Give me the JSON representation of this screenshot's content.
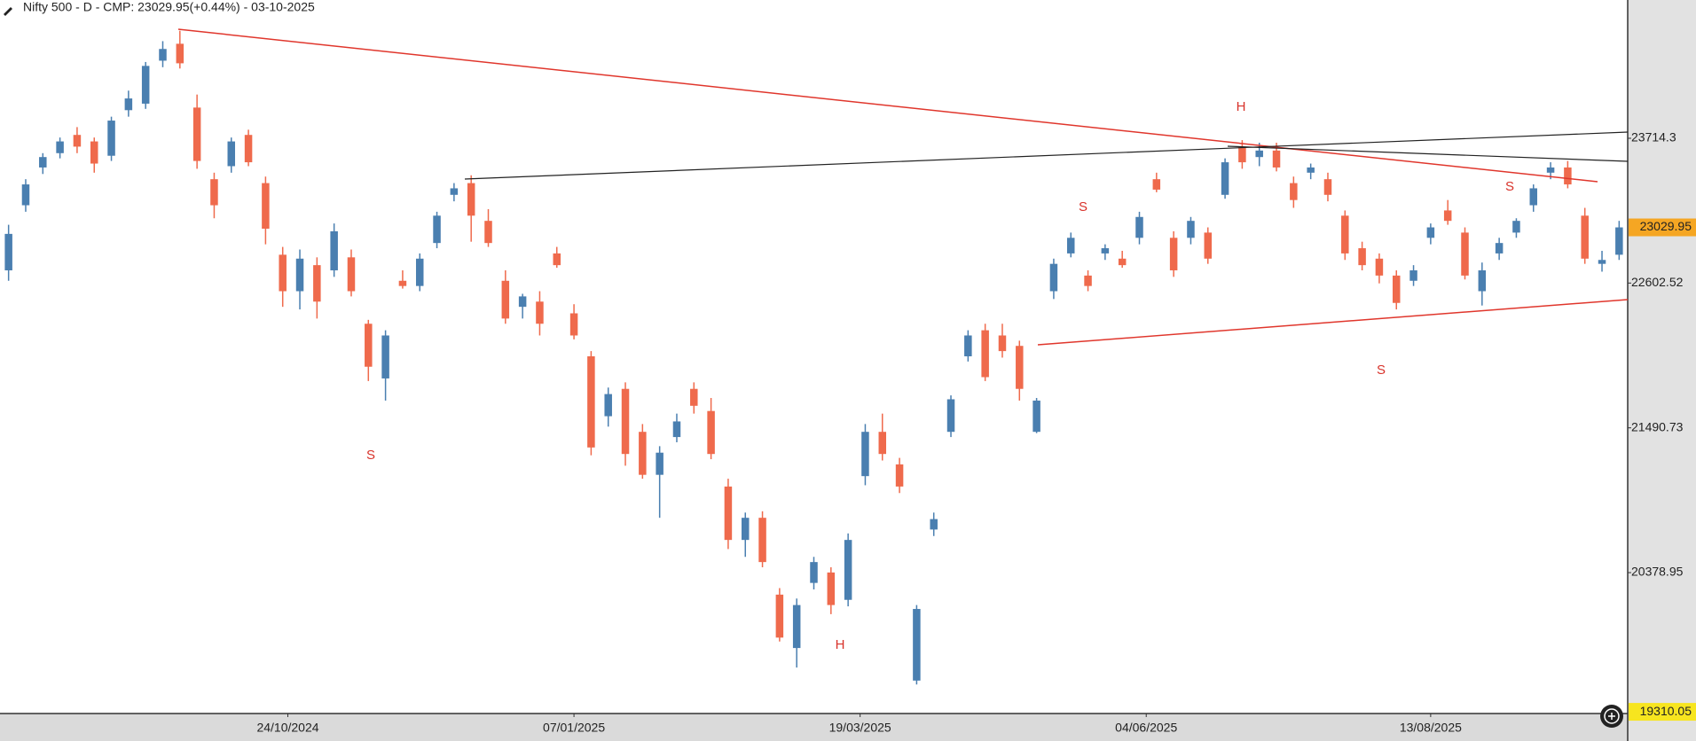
{
  "chart_data": {
    "type": "candlestick",
    "title": "Nifty 500 - D - CMP: 23029.95(+0.44%) - 03-10-2025",
    "up_color": "#4a7fb0",
    "down_color": "#ef6a4c",
    "xlim": [
      0,
      95
    ],
    "xticks": [
      {
        "value": 16.8,
        "label": "24/10/2024"
      },
      {
        "value": 33.5,
        "label": "07/01/2025"
      },
      {
        "value": 50.2,
        "label": "19/03/2025"
      },
      {
        "value": 66.9,
        "label": "04/06/2025"
      },
      {
        "value": 83.5,
        "label": "13/08/2025"
      }
    ],
    "ylim": [
      19297,
      24776
    ],
    "yticks": [
      20378.95,
      21490.73,
      22602.52,
      23714.3
    ],
    "price_labels": [
      {
        "value": 23029.95,
        "color": "#f5a623"
      },
      {
        "value": 19310.05,
        "color": "#f7e51f"
      }
    ],
    "annotations": [
      "S",
      "H",
      "S",
      "H",
      "S",
      "S"
    ],
    "ohlc": [
      [
        22700,
        23050,
        22620,
        22980
      ],
      [
        23200,
        23400,
        23150,
        23360
      ],
      [
        23490,
        23600,
        23440,
        23570
      ],
      [
        23600,
        23720,
        23560,
        23690
      ],
      [
        23740,
        23800,
        23600,
        23650
      ],
      [
        23690,
        23720,
        23450,
        23520
      ],
      [
        23580,
        23880,
        23540,
        23850
      ],
      [
        23930,
        24080,
        23880,
        24020
      ],
      [
        23980,
        24300,
        23940,
        24270
      ],
      [
        24310,
        24460,
        24260,
        24400
      ],
      [
        24440,
        24540,
        24250,
        24290
      ],
      [
        23950,
        24050,
        23480,
        23540
      ],
      [
        23400,
        23450,
        23100,
        23200
      ],
      [
        23500,
        23720,
        23450,
        23690
      ],
      [
        23740,
        23780,
        23500,
        23530
      ],
      [
        23370,
        23420,
        22900,
        23020
      ],
      [
        22820,
        22880,
        22420,
        22540
      ],
      [
        22540,
        22860,
        22400,
        22790
      ],
      [
        22740,
        22800,
        22330,
        22460
      ],
      [
        22700,
        23060,
        22650,
        23000
      ],
      [
        22800,
        22860,
        22500,
        22540
      ],
      [
        22290,
        22320,
        21850,
        21960
      ],
      [
        21870,
        22240,
        21700,
        22200
      ],
      [
        22620,
        22700,
        22560,
        22580
      ],
      [
        22580,
        22830,
        22540,
        22790
      ],
      [
        22910,
        23150,
        22870,
        23120
      ],
      [
        23280,
        23370,
        23230,
        23330
      ],
      [
        23370,
        23430,
        22920,
        23120
      ],
      [
        23080,
        23170,
        22880,
        22910
      ],
      [
        22620,
        22700,
        22290,
        22330
      ],
      [
        22420,
        22520,
        22330,
        22500
      ],
      [
        22460,
        22540,
        22200,
        22290
      ],
      [
        22830,
        22880,
        22720,
        22740
      ],
      [
        22370,
        22440,
        22170,
        22200
      ],
      [
        22040,
        22080,
        21280,
        21340
      ],
      [
        21580,
        21800,
        21500,
        21750
      ],
      [
        21790,
        21840,
        21200,
        21290
      ],
      [
        21460,
        21520,
        21100,
        21130
      ],
      [
        21130,
        21350,
        20800,
        21300
      ],
      [
        21420,
        21600,
        21380,
        21540
      ],
      [
        21790,
        21840,
        21600,
        21660
      ],
      [
        21620,
        21720,
        21250,
        21290
      ],
      [
        21040,
        21100,
        20560,
        20630
      ],
      [
        20630,
        20840,
        20500,
        20800
      ],
      [
        20800,
        20850,
        20420,
        20460
      ],
      [
        20210,
        20260,
        19850,
        19880
      ],
      [
        19800,
        20180,
        19650,
        20130
      ],
      [
        20300,
        20500,
        20250,
        20460
      ],
      [
        20380,
        20420,
        20060,
        20130
      ],
      [
        20170,
        20680,
        20120,
        20630
      ],
      [
        21120,
        21520,
        21050,
        21460
      ],
      [
        21460,
        21600,
        21240,
        21290
      ],
      [
        21210,
        21260,
        20990,
        21040
      ],
      [
        19550,
        20130,
        19520,
        20100
      ],
      [
        20710,
        20840,
        20660,
        20790
      ],
      [
        21460,
        21740,
        21420,
        21710
      ],
      [
        22040,
        22240,
        22000,
        22200
      ],
      [
        22240,
        22290,
        21850,
        21880
      ],
      [
        22200,
        22290,
        22030,
        22080
      ],
      [
        22120,
        22160,
        21700,
        21790
      ],
      [
        21460,
        21720,
        21450,
        21700
      ],
      [
        22540,
        22790,
        22480,
        22750
      ],
      [
        22830,
        22990,
        22800,
        22950
      ],
      [
        22660,
        22700,
        22540,
        22580
      ],
      [
        22830,
        22900,
        22780,
        22870
      ],
      [
        22790,
        22850,
        22720,
        22740
      ],
      [
        22950,
        23150,
        22900,
        23110
      ],
      [
        23400,
        23450,
        23300,
        23320
      ],
      [
        22950,
        23000,
        22650,
        22700
      ],
      [
        22950,
        23110,
        22900,
        23080
      ],
      [
        22990,
        23030,
        22750,
        22790
      ],
      [
        23280,
        23560,
        23250,
        23530
      ],
      [
        23650,
        23700,
        23480,
        23530
      ],
      [
        23570,
        23680,
        23500,
        23620
      ],
      [
        23620,
        23680,
        23460,
        23490
      ],
      [
        23370,
        23420,
        23180,
        23240
      ],
      [
        23450,
        23520,
        23400,
        23490
      ],
      [
        23400,
        23450,
        23230,
        23280
      ],
      [
        23120,
        23160,
        22780,
        22830
      ],
      [
        22870,
        22920,
        22700,
        22740
      ],
      [
        22790,
        22830,
        22600,
        22660
      ],
      [
        22660,
        22700,
        22400,
        22450
      ],
      [
        22620,
        22740,
        22580,
        22700
      ],
      [
        22950,
        23060,
        22900,
        23030
      ],
      [
        23160,
        23240,
        23050,
        23080
      ],
      [
        22990,
        23030,
        22630,
        22660
      ],
      [
        22540,
        22760,
        22430,
        22700
      ],
      [
        22830,
        22950,
        22780,
        22910
      ],
      [
        22990,
        23100,
        22950,
        23080
      ],
      [
        23200,
        23360,
        23150,
        23330
      ],
      [
        23450,
        23530,
        23400,
        23490
      ],
      [
        23490,
        23540,
        23330,
        23360
      ],
      [
        23120,
        23180,
        22750,
        22790
      ],
      [
        22750,
        22850,
        22690,
        22780
      ],
      [
        22820,
        23080,
        22780,
        23029.95
      ]
    ]
  }
}
